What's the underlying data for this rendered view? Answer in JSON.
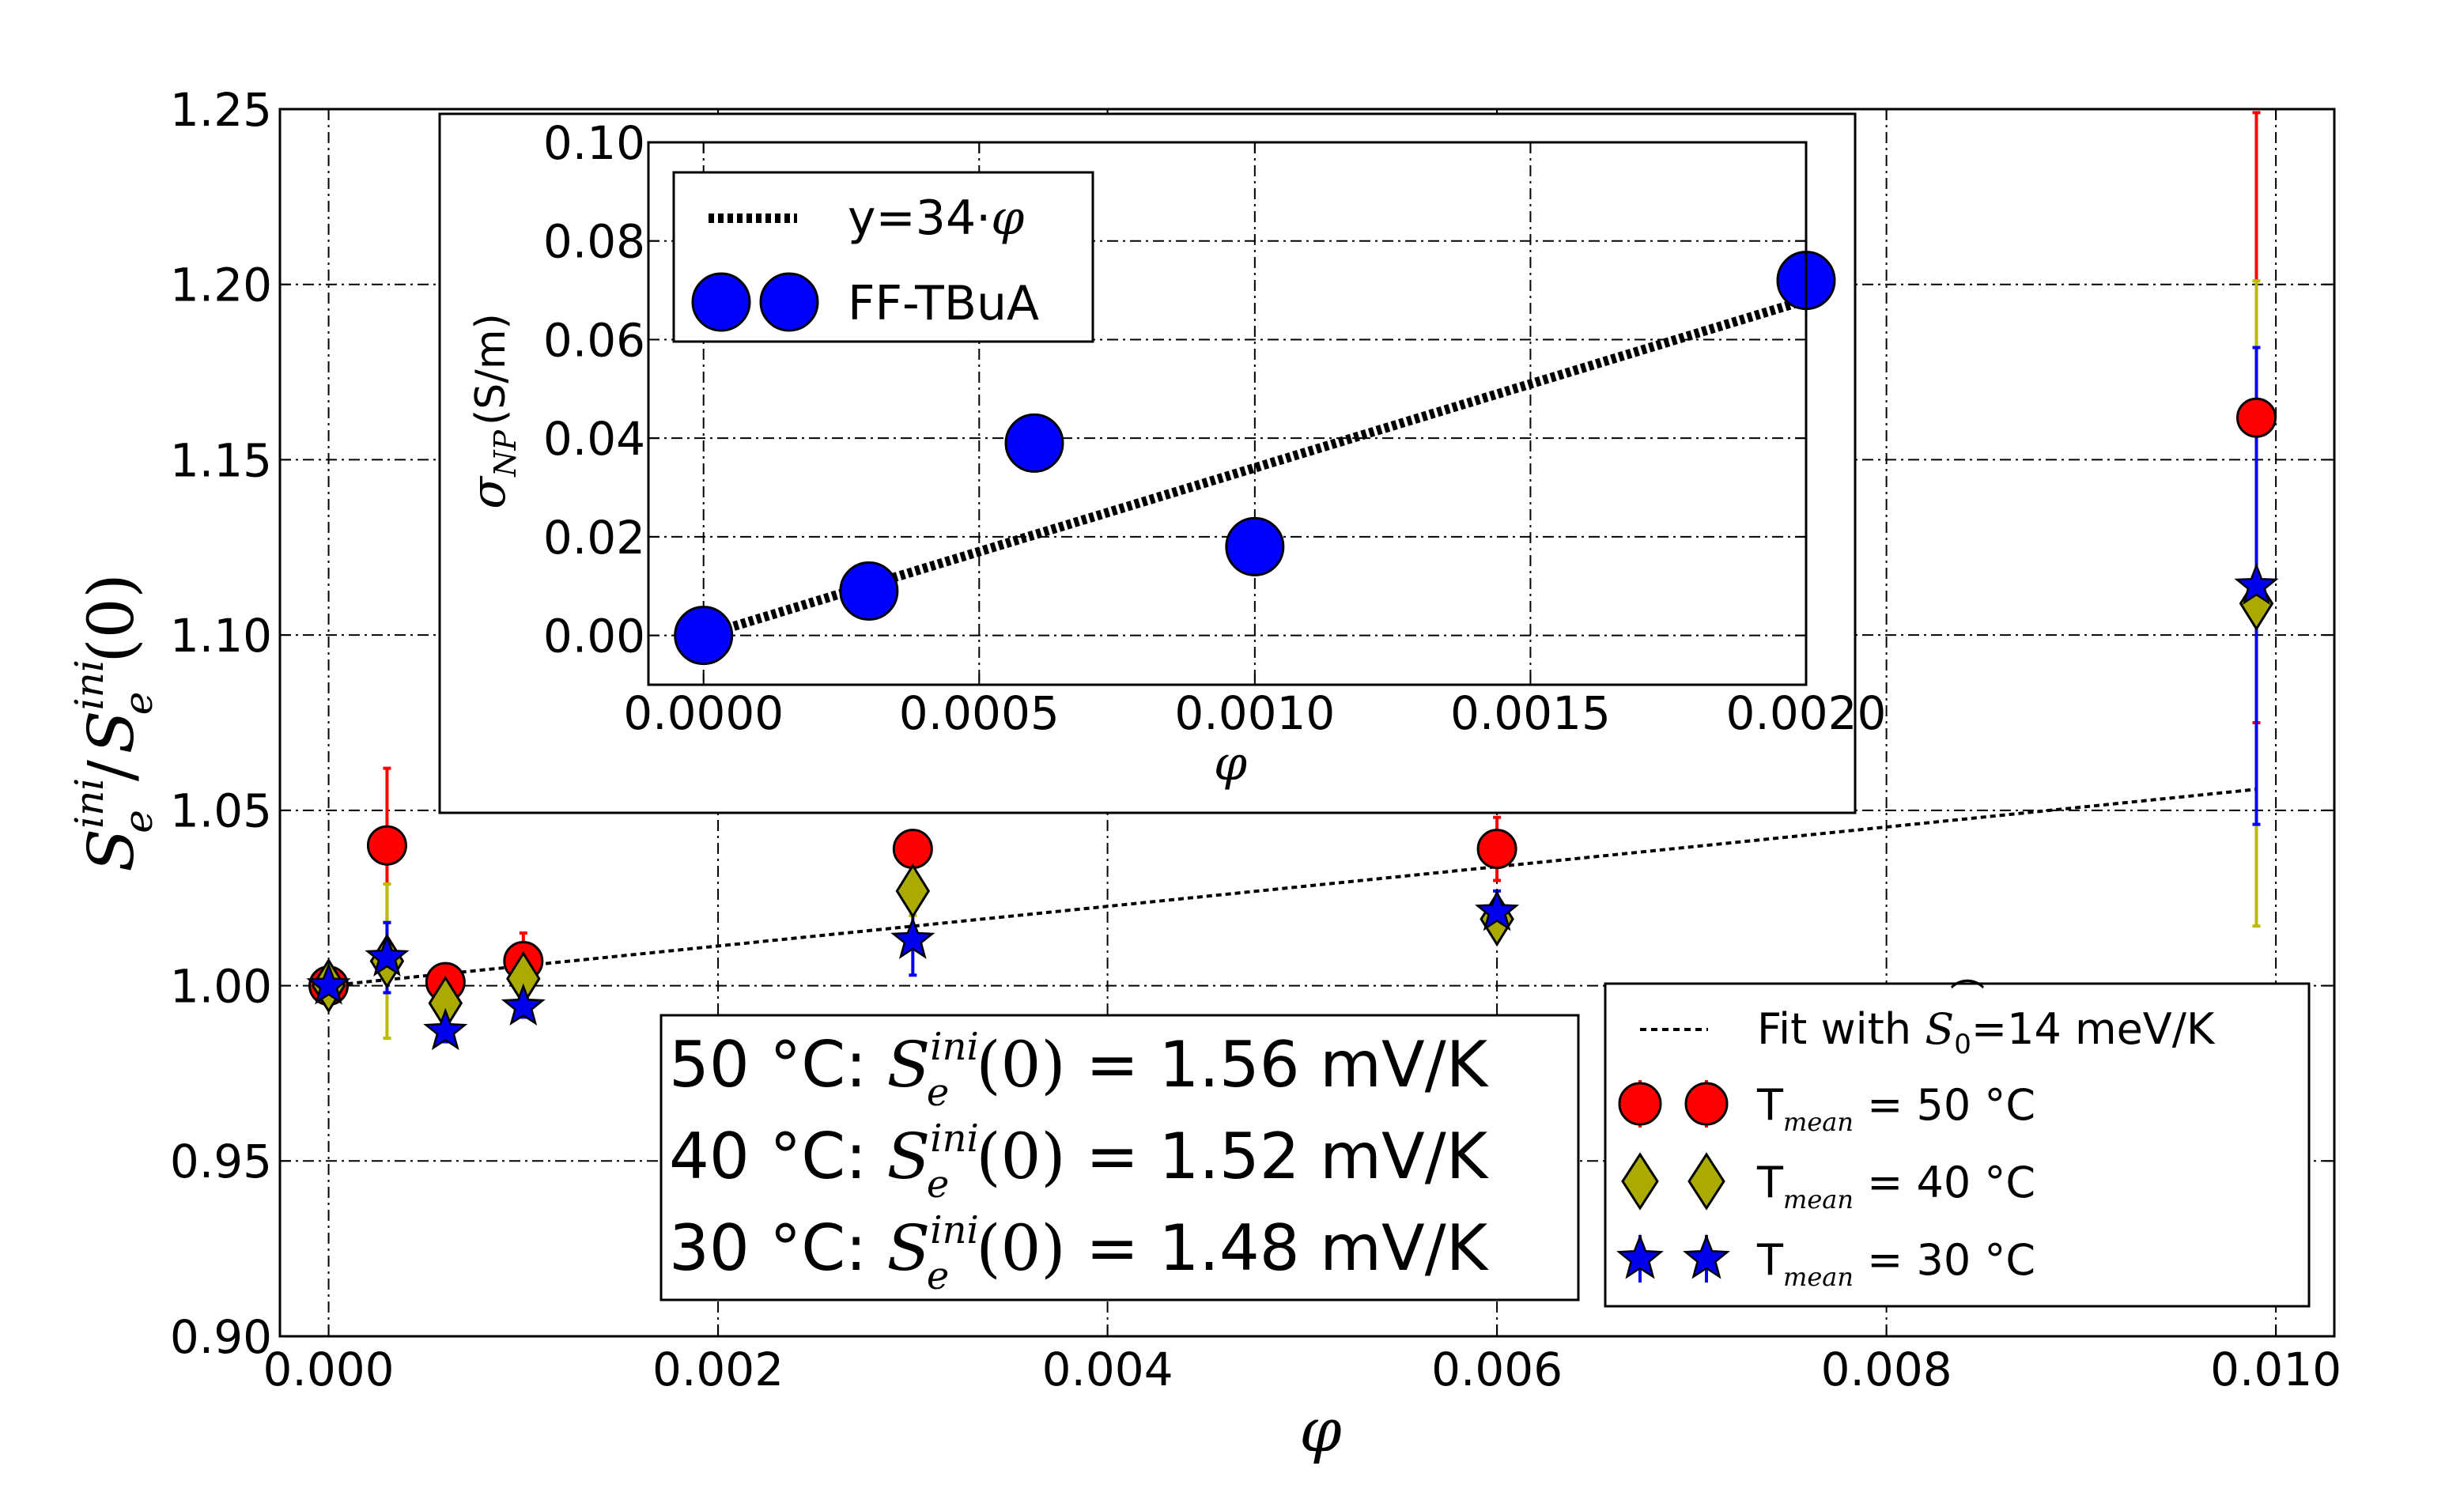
{
  "chart_data": [
    {
      "type": "scatter",
      "role": "main",
      "xlabel": "φ",
      "ylabel_main": "S",
      "ylabel_sub": "e",
      "ylabel_sup": "ini",
      "ylabel_sep": "/",
      "ylabel_tail": "(0)",
      "xlim": [
        -0.00025,
        0.0103
      ],
      "ylim": [
        0.9,
        1.25
      ],
      "xticks": [
        0,
        0.002,
        0.004,
        0.006,
        0.008,
        0.01
      ],
      "xtick_labels": [
        "0.000",
        "0.002",
        "0.004",
        "0.006",
        "0.008",
        "0.010"
      ],
      "yticks": [
        0.9,
        0.95,
        1.0,
        1.05,
        1.1,
        1.15,
        1.2,
        1.25
      ],
      "ytick_labels": [
        "0.90",
        "0.95",
        "1.00",
        "1.05",
        "1.10",
        "1.15",
        "1.20",
        "1.25"
      ],
      "grid": true,
      "fit": {
        "name": "Fit with S̃₀=14 meV/K",
        "x": [
          0.0,
          0.0099
        ],
        "y": [
          1.0,
          1.056
        ]
      },
      "series": [
        {
          "name": "T_mean = 50 °C",
          "marker": "circle",
          "color": "#ff0000",
          "errcolor": "#ff0000",
          "x": [
            0.0,
            0.0003,
            0.0006,
            0.001,
            0.003,
            0.006,
            0.0099
          ],
          "y": [
            1.0,
            1.04,
            1.001,
            1.007,
            1.039,
            1.039,
            1.162
          ],
          "err": [
            0.004,
            0.022,
            0.004,
            0.008,
            0.003,
            0.009,
            0.087
          ]
        },
        {
          "name": "T_mean = 40 °C",
          "marker": "diamond",
          "color": "#aaaa00",
          "errcolor": "#bbbb00",
          "x": [
            0.0,
            0.0003,
            0.0006,
            0.001,
            0.003,
            0.006,
            0.0099
          ],
          "y": [
            1.0,
            1.007,
            0.995,
            1.002,
            1.027,
            1.019,
            1.109
          ],
          "err": [
            0.004,
            0.022,
            0.004,
            0.004,
            0.007,
            0.005,
            0.092
          ]
        },
        {
          "name": "T_mean = 30 °C",
          "marker": "star",
          "color": "#0000ee",
          "errcolor": "#0000ff",
          "x": [
            0.0,
            0.0003,
            0.0006,
            0.001,
            0.003,
            0.006,
            0.0099
          ],
          "y": [
            1.0,
            1.008,
            0.987,
            0.994,
            1.013,
            1.021,
            1.114
          ],
          "err": [
            0.004,
            0.01,
            0.003,
            0.003,
            0.01,
            0.006,
            0.068
          ]
        }
      ],
      "legend": {
        "placement": "lower-right",
        "entries": [
          {
            "prefix": "Fit with ",
            "sym": "S",
            "sub": "0",
            "suffix": "=14 meV/K"
          },
          {
            "prefix": "T",
            "sub": "mean",
            "suffix": " = 50 °C"
          },
          {
            "prefix": "T",
            "sub": "mean",
            "suffix": " = 40 °C"
          },
          {
            "prefix": "T",
            "sub": "mean",
            "suffix": " = 30 °C"
          }
        ]
      },
      "annotation": {
        "lines": [
          {
            "prefix": "50 °C: ",
            "value": " = 1.56 mV/K"
          },
          {
            "prefix": "40 °C: ",
            "value": " = 1.52 mV/K"
          },
          {
            "prefix": "30 °C: ",
            "value": " = 1.48 mV/K"
          }
        ],
        "sym_main": "S",
        "sym_sub": "e",
        "sym_sup": "ini",
        "sym_tail": "(0)"
      }
    },
    {
      "type": "scatter",
      "role": "inset",
      "xlabel": "φ",
      "ylabel_main": "σ",
      "ylabel_sub": "NP",
      "ylabel_unit": "(S/m)",
      "xlim": [
        -0.0001,
        0.002
      ],
      "ylim": [
        -0.01,
        0.1
      ],
      "xticks": [
        0,
        0.0005,
        0.001,
        0.0015,
        0.002
      ],
      "xtick_labels": [
        "0.0000",
        "0.0005",
        "0.0010",
        "0.0015",
        "0.0020"
      ],
      "yticks": [
        0.0,
        0.02,
        0.04,
        0.06,
        0.08,
        0.1
      ],
      "ytick_labels": [
        "0.00",
        "0.02",
        "0.04",
        "0.06",
        "0.08",
        "0.10"
      ],
      "grid": true,
      "fit": {
        "name": "y=34·φ",
        "label_text": "y=34·",
        "label_phi": "φ",
        "x": [
          0.0,
          0.002
        ],
        "y": [
          0.0,
          0.068
        ]
      },
      "series": [
        {
          "name": "FF-TBuA",
          "marker": "circle",
          "color": "#0000ff",
          "x": [
            0.0,
            0.0003,
            0.0006,
            0.001,
            0.002
          ],
          "y": [
            0.0,
            0.009,
            0.039,
            0.018,
            0.072
          ]
        }
      ],
      "legend": {
        "placement": "upper-left"
      }
    }
  ]
}
